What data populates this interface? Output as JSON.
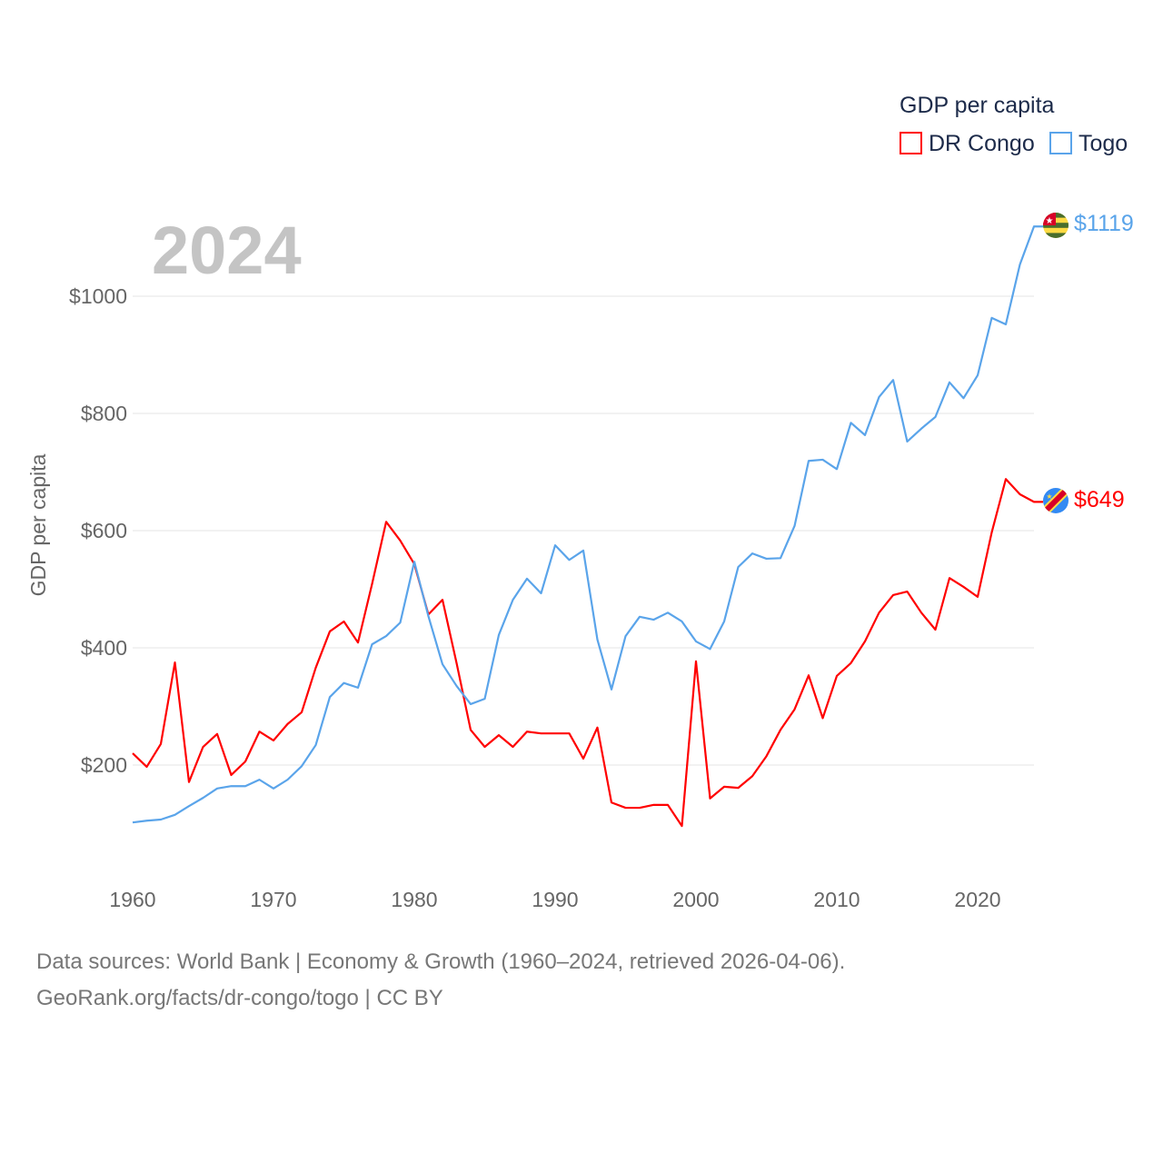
{
  "chart_data": {
    "type": "line",
    "big_year_label": "2024",
    "ylabel": "GDP per capita",
    "legend": {
      "title": "GDP per capita",
      "placement": "top-right"
    },
    "x_range": [
      1960,
      2024
    ],
    "ylim": [
      0,
      1200
    ],
    "x_ticks": [
      "1960",
      "1970",
      "1980",
      "1990",
      "2000",
      "2010",
      "2020"
    ],
    "y_ticks": [
      {
        "value": 200,
        "label": "$200"
      },
      {
        "value": 400,
        "label": "$400"
      },
      {
        "value": 600,
        "label": "$600"
      },
      {
        "value": 800,
        "label": "$800"
      },
      {
        "value": 1000,
        "label": "$1000"
      }
    ],
    "grid": true,
    "series": [
      {
        "name": "DR Congo",
        "color": "#ff0000",
        "end_label": "$649",
        "flag": "dr-congo-flag",
        "values": [
          220,
          197,
          236,
          375,
          171,
          231,
          253,
          183,
          206,
          257,
          242,
          270,
          290,
          366,
          428,
          445,
          409,
          509,
          615,
          583,
          543,
          457,
          482,
          374,
          260,
          231,
          251,
          231,
          257,
          254,
          254,
          254,
          211,
          264,
          136,
          127,
          127,
          132,
          132,
          96,
          377,
          143,
          163,
          161,
          181,
          215,
          260,
          295,
          353,
          280,
          352,
          374,
          411,
          460,
          490,
          496,
          460,
          431,
          519,
          504,
          487,
          597,
          688,
          662,
          649
        ]
      },
      {
        "name": "Togo",
        "color": "#5aa4ea",
        "end_label": "$1119",
        "flag": "togo-flag",
        "values": [
          102,
          105,
          107,
          115,
          130,
          144,
          160,
          164,
          164,
          175,
          160,
          175,
          198,
          234,
          316,
          340,
          332,
          406,
          420,
          443,
          547,
          454,
          372,
          335,
          304,
          313,
          422,
          482,
          518,
          493,
          575,
          550,
          566,
          414,
          329,
          420,
          453,
          448,
          460,
          445,
          411,
          398,
          445,
          538,
          561,
          552,
          553,
          608,
          719,
          721,
          705,
          784,
          763,
          828,
          857,
          752,
          774,
          794,
          853,
          826,
          865,
          963,
          952,
          1054,
          1119
        ]
      }
    ]
  },
  "footer": {
    "line1": "Data sources: World Bank | Economy & Growth (1960–2024, retrieved 2026-04-06).",
    "line2": "GeoRank.org/facts/dr-congo/togo | CC BY"
  }
}
